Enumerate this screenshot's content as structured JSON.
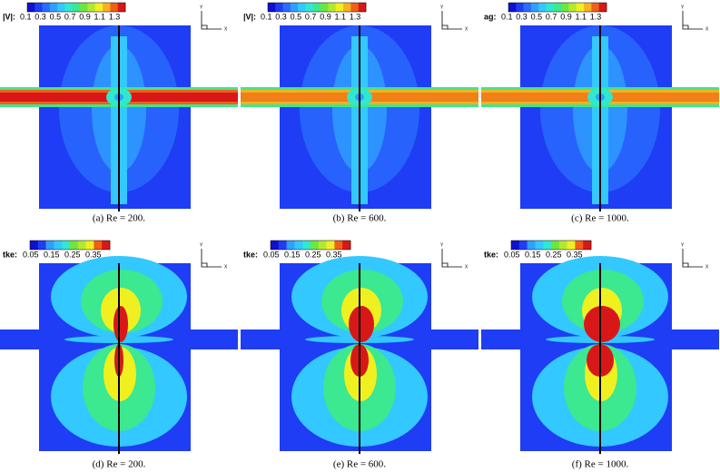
{
  "panels": [
    {
      "legend_label": "|V|:",
      "legend_ticks": [
        "0.1",
        "0.3",
        "0.5",
        "0.7",
        "0.9",
        "1.1",
        "1.3"
      ],
      "axis_labels": [
        "Y",
        "X"
      ],
      "caption": "(a) Re = 200."
    },
    {
      "legend_label": "|V|:",
      "legend_ticks": [
        "0.1",
        "0.3",
        "0.5",
        "0.7",
        "0.9",
        "1.1",
        "1.3"
      ],
      "axis_labels": [
        "Y",
        "X"
      ],
      "caption": "(b) Re = 600."
    },
    {
      "legend_label": "ag:",
      "legend_ticks": [
        "0.1",
        "0.3",
        "0.5",
        "0.7",
        "0.9",
        "1.1",
        "1.3"
      ],
      "axis_labels": [
        "Y",
        "X"
      ],
      "caption": "(c) Re = 1000."
    },
    {
      "legend_label": "tke:",
      "legend_ticks": [
        "0.05",
        "0.15",
        "0.25",
        "0.35"
      ],
      "axis_labels": [
        "Y",
        "X"
      ],
      "caption": "(d) Re = 200."
    },
    {
      "legend_label": "tke:",
      "legend_ticks": [
        "0.05",
        "0.15",
        "0.25",
        "0.35"
      ],
      "axis_labels": [
        "Y",
        "X"
      ],
      "caption": "(e) Re = 600."
    },
    {
      "legend_label": "tke:",
      "legend_ticks": [
        "0.05",
        "0.15",
        "0.25",
        "0.35"
      ],
      "axis_labels": [
        "Y",
        "X"
      ],
      "caption": "(f) Re = 1000."
    }
  ]
}
